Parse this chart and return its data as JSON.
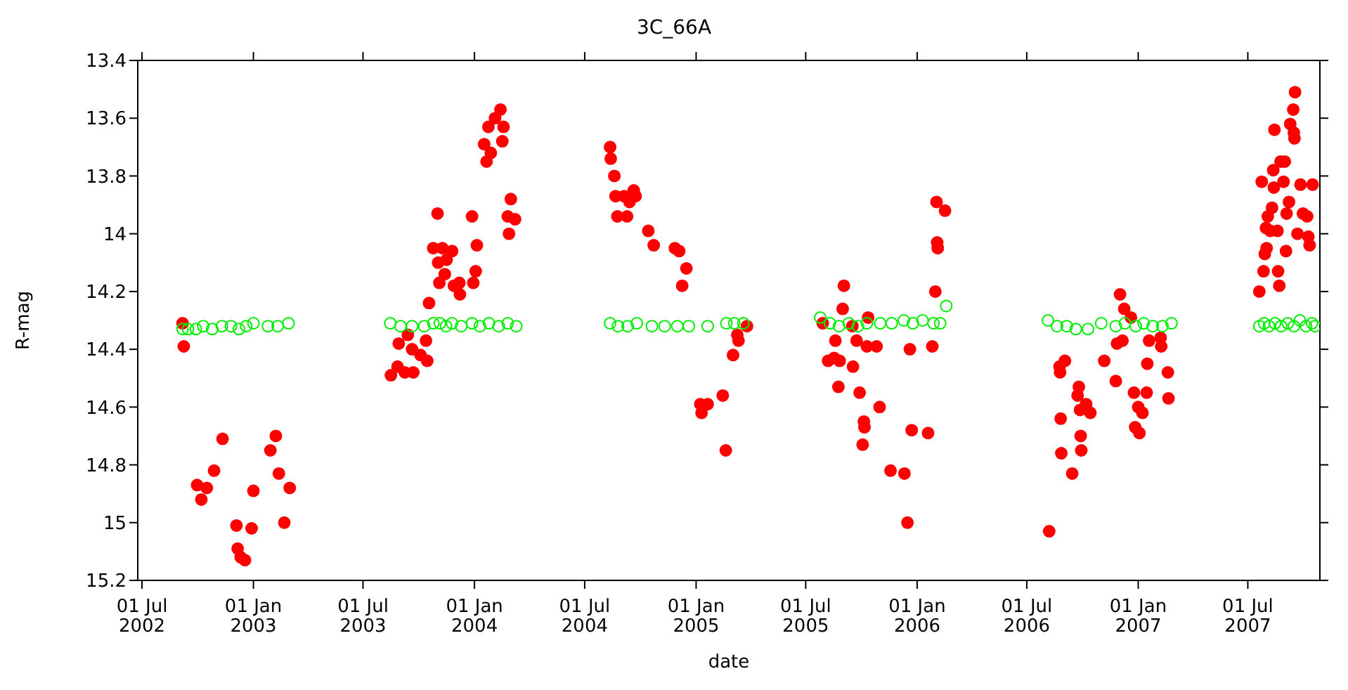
{
  "chart_data": {
    "type": "scatter",
    "title": "3C_66A",
    "xlabel": "date",
    "ylabel": "R-mag",
    "marker": "circle",
    "legend": false,
    "xlim": [
      "2002-06-24",
      "2007-10-28"
    ],
    "xticks": [
      {
        "value": "2002-07-01",
        "label": "01 Jul 2002"
      },
      {
        "value": "2003-01-01",
        "label": "01 Jan 2003"
      },
      {
        "value": "2003-07-01",
        "label": "01 Jul 2003"
      },
      {
        "value": "2004-01-01",
        "label": "01 Jan 2004"
      },
      {
        "value": "2004-07-01",
        "label": "01 Jul 2004"
      },
      {
        "value": "2005-01-01",
        "label": "01 Jan 2005"
      },
      {
        "value": "2005-07-01",
        "label": "01 Jul 2005"
      },
      {
        "value": "2006-01-01",
        "label": "01 Jan 2006"
      },
      {
        "value": "2006-07-01",
        "label": "01 Jul 2006"
      },
      {
        "value": "2007-01-01",
        "label": "01 Jan 2007"
      },
      {
        "value": "2007-07-01",
        "label": "01 Jul 2007"
      }
    ],
    "ylim": [
      15.2,
      13.4
    ],
    "yticks": [
      {
        "value": 15.2,
        "label": "15.2"
      },
      15,
      {
        "value": 14.8,
        "label": "14.8"
      },
      {
        "value": 14.6,
        "label": "14.6"
      },
      {
        "value": 14.4,
        "label": "14.4"
      },
      {
        "value": 14.2,
        "label": "14.2"
      },
      14,
      {
        "value": 13.8,
        "label": "13.8"
      },
      {
        "value": 13.6,
        "label": "13.6"
      },
      {
        "value": 13.4,
        "label": "13.4"
      }
    ],
    "series": [
      {
        "color": "#ff0000",
        "x": [
          "2002-09-06",
          "2002-09-08",
          "2002-09-30",
          "2002-10-07",
          "2002-10-16",
          "2002-10-28",
          "2002-11-11",
          "2002-12-04",
          "2002-12-06",
          "2002-12-11",
          "2002-12-18",
          "2002-12-29",
          "2003-01-01",
          "2003-01-29",
          "2003-02-07",
          "2003-02-12",
          "2003-02-21",
          "2003-03-02",
          "2003-08-16",
          "2003-08-27",
          "2003-08-29",
          "2003-09-08",
          "2003-09-13",
          "2003-09-20",
          "2003-09-22",
          "2003-10-04",
          "2003-10-13",
          "2003-10-15",
          "2003-10-18",
          "2003-10-25",
          "2003-11-01",
          "2003-11-02",
          "2003-11-04",
          "2003-11-09",
          "2003-11-13",
          "2003-11-16",
          "2003-11-25",
          "2003-11-28",
          "2003-12-07",
          "2003-12-08",
          "2003-12-28",
          "2003-12-30",
          "2004-01-03",
          "2004-01-05",
          "2004-01-17",
          "2004-01-21",
          "2004-01-24",
          "2004-01-28",
          "2004-02-04",
          "2004-02-13",
          "2004-02-16",
          "2004-02-18",
          "2004-02-25",
          "2004-02-27",
          "2004-03-01",
          "2004-03-08",
          "2004-08-12",
          "2004-08-13",
          "2004-08-19",
          "2004-08-21",
          "2004-08-24",
          "2004-09-04",
          "2004-09-09",
          "2004-09-13",
          "2004-09-20",
          "2004-09-23",
          "2004-10-14",
          "2004-10-23",
          "2004-11-27",
          "2004-12-04",
          "2004-12-09",
          "2004-12-16",
          "2005-01-08",
          "2005-01-10",
          "2005-01-20",
          "2005-02-14",
          "2005-02-19",
          "2005-03-03",
          "2005-03-10",
          "2005-03-12",
          "2005-03-26",
          "2005-07-29",
          "2005-08-07",
          "2005-08-17",
          "2005-08-19",
          "2005-08-24",
          "2005-08-26",
          "2005-08-31",
          "2005-09-02",
          "2005-09-16",
          "2005-09-17",
          "2005-09-23",
          "2005-09-28",
          "2005-10-03",
          "2005-10-05",
          "2005-10-06",
          "2005-10-10",
          "2005-10-12",
          "2005-10-26",
          "2005-10-31",
          "2005-11-18",
          "2005-12-11",
          "2005-12-16",
          "2005-12-20",
          "2005-12-23",
          "2006-01-19",
          "2006-01-26",
          "2006-01-31",
          "2006-02-02",
          "2006-02-03",
          "2006-02-04",
          "2006-02-16",
          "2006-08-07",
          "2006-08-24",
          "2006-08-25",
          "2006-08-26",
          "2006-08-27",
          "2006-09-02",
          "2006-09-14",
          "2006-09-23",
          "2006-09-25",
          "2006-09-27",
          "2006-09-28",
          "2006-09-29",
          "2006-10-07",
          "2006-10-14",
          "2006-11-06",
          "2006-11-25",
          "2006-11-27",
          "2006-12-02",
          "2006-12-06",
          "2006-12-09",
          "2006-12-20",
          "2006-12-25",
          "2006-12-27",
          "2007-01-01",
          "2007-01-03",
          "2007-01-08",
          "2007-01-15",
          "2007-01-16",
          "2007-01-19",
          "2007-02-07",
          "2007-02-08",
          "2007-02-19",
          "2007-02-20",
          "2007-07-20",
          "2007-07-24",
          "2007-07-27",
          "2007-07-29",
          "2007-07-31",
          "2007-08-01",
          "2007-08-03",
          "2007-08-07",
          "2007-08-10",
          "2007-08-12",
          "2007-08-13",
          "2007-08-14",
          "2007-08-19",
          "2007-08-20",
          "2007-08-22",
          "2007-08-24",
          "2007-08-29",
          "2007-08-31",
          "2007-09-02",
          "2007-09-03",
          "2007-09-07",
          "2007-09-09",
          "2007-09-14",
          "2007-09-15",
          "2007-09-16",
          "2007-09-17",
          "2007-09-21",
          "2007-09-26",
          "2007-09-30",
          "2007-10-07",
          "2007-10-09",
          "2007-10-11",
          "2007-10-16"
        ],
        "values": [
          14.31,
          14.39,
          14.87,
          14.92,
          14.88,
          14.82,
          14.71,
          15.01,
          15.09,
          15.12,
          15.13,
          15.02,
          14.89,
          14.75,
          14.7,
          14.83,
          15.0,
          14.88,
          14.49,
          14.46,
          14.38,
          14.48,
          14.35,
          14.4,
          14.48,
          14.42,
          14.37,
          14.44,
          14.24,
          14.05,
          13.93,
          14.1,
          14.17,
          14.05,
          14.14,
          14.09,
          14.06,
          14.18,
          14.17,
          14.21,
          13.94,
          14.17,
          14.13,
          14.04,
          13.69,
          13.75,
          13.63,
          13.72,
          13.6,
          13.57,
          13.68,
          13.63,
          13.94,
          14.0,
          13.88,
          13.95,
          13.7,
          13.74,
          13.8,
          13.87,
          13.94,
          13.87,
          13.94,
          13.89,
          13.85,
          13.87,
          13.99,
          14.04,
          14.05,
          14.06,
          14.18,
          14.12,
          14.59,
          14.62,
          14.59,
          14.56,
          14.75,
          14.42,
          14.35,
          14.37,
          14.32,
          14.31,
          14.44,
          14.43,
          14.37,
          14.53,
          14.44,
          14.26,
          14.18,
          14.32,
          14.46,
          14.37,
          14.55,
          14.73,
          14.65,
          14.67,
          14.39,
          14.29,
          14.39,
          14.6,
          14.82,
          14.83,
          15.0,
          14.4,
          14.68,
          14.69,
          14.39,
          14.2,
          13.89,
          14.03,
          14.05,
          13.92,
          15.03,
          14.46,
          14.48,
          14.64,
          14.76,
          14.44,
          14.83,
          14.56,
          14.53,
          14.61,
          14.7,
          14.75,
          14.59,
          14.62,
          14.44,
          14.51,
          14.38,
          14.21,
          14.37,
          14.26,
          14.29,
          14.55,
          14.67,
          14.6,
          14.69,
          14.62,
          14.55,
          14.45,
          14.37,
          14.36,
          14.39,
          14.48,
          14.57,
          14.2,
          13.82,
          14.13,
          14.07,
          13.98,
          14.05,
          13.94,
          13.99,
          13.91,
          13.78,
          13.84,
          13.64,
          13.99,
          14.13,
          14.18,
          13.75,
          13.82,
          13.75,
          14.06,
          13.93,
          13.89,
          13.62,
          13.57,
          13.65,
          13.67,
          13.51,
          14.0,
          13.83,
          13.93,
          13.94,
          14.01,
          14.04,
          13.83
        ]
      },
      {
        "color": "#00ee00",
        "x": [
          "2002-09-06",
          "2002-09-15",
          "2002-09-28",
          "2002-10-10",
          "2002-10-25",
          "2002-11-10",
          "2002-11-25",
          "2002-12-08",
          "2002-12-20",
          "2003-01-01",
          "2003-01-25",
          "2003-02-10",
          "2003-02-28",
          "2003-08-15",
          "2003-09-01",
          "2003-09-20",
          "2003-10-10",
          "2003-10-25",
          "2003-11-05",
          "2003-11-15",
          "2003-11-25",
          "2003-12-10",
          "2003-12-28",
          "2004-01-10",
          "2004-01-25",
          "2004-02-10",
          "2004-02-25",
          "2004-03-10",
          "2004-08-12",
          "2004-08-25",
          "2004-09-10",
          "2004-09-25",
          "2004-10-20",
          "2004-11-10",
          "2004-12-01",
          "2004-12-20",
          "2005-01-20",
          "2005-02-20",
          "2005-03-05",
          "2005-03-20",
          "2005-07-25",
          "2005-08-10",
          "2005-08-25",
          "2005-09-10",
          "2005-09-25",
          "2005-10-10",
          "2005-11-01",
          "2005-11-20",
          "2005-12-10",
          "2005-12-25",
          "2006-01-10",
          "2006-01-28",
          "2006-02-08",
          "2006-02-18",
          "2006-08-05",
          "2006-08-20",
          "2006-09-05",
          "2006-09-20",
          "2006-10-10",
          "2006-11-01",
          "2006-11-25",
          "2006-12-10",
          "2006-12-28",
          "2007-01-10",
          "2007-01-25",
          "2007-02-10",
          "2007-02-25",
          "2007-07-20",
          "2007-07-28",
          "2007-08-05",
          "2007-08-15",
          "2007-08-25",
          "2007-09-05",
          "2007-09-15",
          "2007-09-25",
          "2007-10-05",
          "2007-10-15",
          "2007-10-20"
        ],
        "values": [
          14.33,
          14.33,
          14.33,
          14.32,
          14.33,
          14.32,
          14.32,
          14.33,
          14.32,
          14.31,
          14.32,
          14.32,
          14.31,
          14.31,
          14.32,
          14.32,
          14.32,
          14.31,
          14.31,
          14.32,
          14.31,
          14.32,
          14.31,
          14.32,
          14.31,
          14.32,
          14.31,
          14.32,
          14.31,
          14.32,
          14.32,
          14.31,
          14.32,
          14.32,
          14.32,
          14.32,
          14.32,
          14.31,
          14.31,
          14.31,
          14.29,
          14.31,
          14.32,
          14.31,
          14.32,
          14.31,
          14.31,
          14.31,
          14.3,
          14.31,
          14.3,
          14.31,
          14.31,
          14.25,
          14.3,
          14.32,
          14.32,
          14.33,
          14.33,
          14.31,
          14.32,
          14.31,
          14.32,
          14.31,
          14.32,
          14.32,
          14.31,
          14.32,
          14.31,
          14.32,
          14.31,
          14.32,
          14.31,
          14.32,
          14.3,
          14.32,
          14.31,
          14.32
        ]
      }
    ]
  }
}
